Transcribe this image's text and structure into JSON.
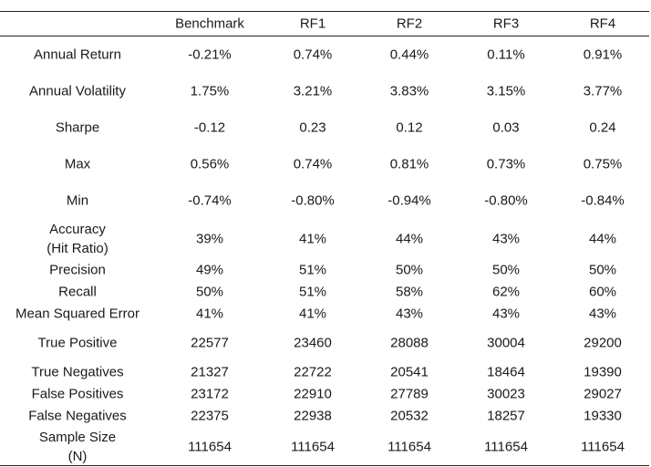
{
  "table": {
    "headers": [
      "",
      "Benchmark",
      "RF1",
      "RF2",
      "RF3",
      "RF4"
    ],
    "rows": [
      {
        "label": [
          "Annual Return"
        ],
        "values": [
          "-0.21%",
          "0.74%",
          "0.44%",
          "0.11%",
          "0.91%"
        ]
      },
      {
        "label": [
          "Annual Volatility"
        ],
        "values": [
          "1.75%",
          "3.21%",
          "3.83%",
          "3.15%",
          "3.77%"
        ]
      },
      {
        "label": [
          "Sharpe"
        ],
        "values": [
          "-0.12",
          "0.23",
          "0.12",
          "0.03",
          "0.24"
        ]
      },
      {
        "label": [
          "Max"
        ],
        "values": [
          "0.56%",
          "0.74%",
          "0.81%",
          "0.73%",
          "0.75%"
        ]
      },
      {
        "label": [
          "Min"
        ],
        "values": [
          "-0.74%",
          "-0.80%",
          "-0.94%",
          "-0.80%",
          "-0.84%"
        ]
      },
      {
        "label": [
          "Accuracy",
          "(Hit Ratio)"
        ],
        "values": [
          "39%",
          "41%",
          "44%",
          "43%",
          "44%"
        ]
      },
      {
        "label": [
          "Precision"
        ],
        "values": [
          "49%",
          "51%",
          "50%",
          "50%",
          "50%"
        ]
      },
      {
        "label": [
          "Recall"
        ],
        "values": [
          "50%",
          "51%",
          "58%",
          "62%",
          "60%"
        ]
      },
      {
        "label": [
          "Mean Squared Error"
        ],
        "values": [
          "41%",
          "41%",
          "43%",
          "43%",
          "43%"
        ]
      },
      {
        "label": [
          "True Positive"
        ],
        "values": [
          "22577",
          "23460",
          "28088",
          "30004",
          "29200"
        ]
      },
      {
        "label": [
          "True Negatives"
        ],
        "values": [
          "21327",
          "22722",
          "20541",
          "18464",
          "19390"
        ]
      },
      {
        "label": [
          "False Positives"
        ],
        "values": [
          "23172",
          "22910",
          "27789",
          "30023",
          "29027"
        ]
      },
      {
        "label": [
          "False Negatives"
        ],
        "values": [
          "22375",
          "22938",
          "20532",
          "18257",
          "19330"
        ]
      },
      {
        "label": [
          "Sample Size",
          "(N)"
        ],
        "values": [
          "111654",
          "111654",
          "111654",
          "111654",
          "111654"
        ]
      }
    ]
  }
}
